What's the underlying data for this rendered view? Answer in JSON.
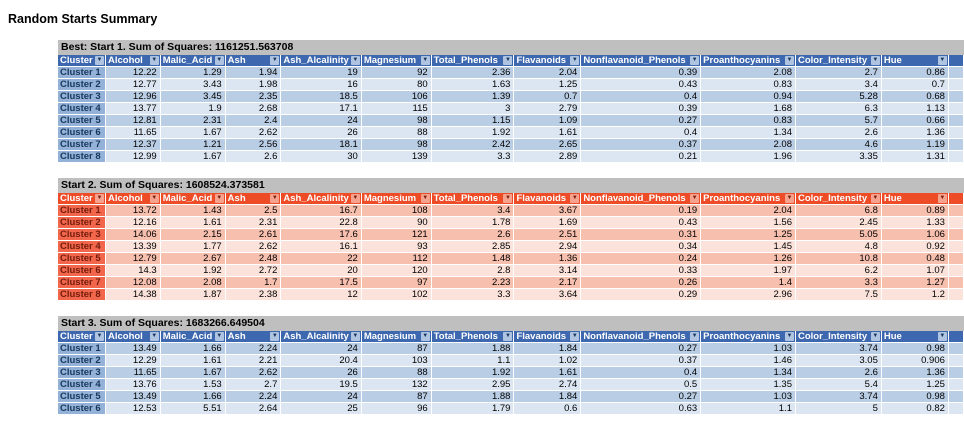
{
  "page_title": "Random Starts Summary",
  "icons": {
    "filter": "▼"
  },
  "colors": {
    "caption_bg": "#BFBFBF",
    "blue_header": "#3D68B0",
    "blue_first_col": "#94B2D8",
    "blue_first_col_text": "#17375D",
    "blue_band_dark": "#B9CDE4",
    "blue_band_light": "#DCE6F2",
    "red_header": "#EE4C27",
    "red_first_col": "#F2674B",
    "red_first_col_text": "#731C0D",
    "red_band_dark": "#F6BFAE",
    "red_band_light": "#FBE3DB"
  },
  "columns": [
    "Cluster",
    "Alcohol",
    "Malic_Acid",
    "Ash",
    "Ash_Alcalinity",
    "Magnesium",
    "Total_Phenols",
    "Flavanoids",
    "Nonflavanoid_Phenols",
    "Proanthocyanins",
    "Color_Intensity",
    "Hue"
  ],
  "tables": [
    {
      "caption": "Best: Start 1. Sum of Squares: 1161251.563708",
      "theme": "blue",
      "rows": [
        [
          "Cluster 1",
          "12.22",
          "1.29",
          "1.94",
          "19",
          "92",
          "2.36",
          "2.04",
          "0.39",
          "2.08",
          "2.7",
          "0.86"
        ],
        [
          "Cluster 2",
          "12.77",
          "3.43",
          "1.98",
          "16",
          "80",
          "1.63",
          "1.25",
          "0.43",
          "0.83",
          "3.4",
          "0.7"
        ],
        [
          "Cluster 3",
          "12.96",
          "3.45",
          "2.35",
          "18.5",
          "106",
          "1.39",
          "0.7",
          "0.4",
          "0.94",
          "5.28",
          "0.68"
        ],
        [
          "Cluster 4",
          "13.77",
          "1.9",
          "2.68",
          "17.1",
          "115",
          "3",
          "2.79",
          "0.39",
          "1.68",
          "6.3",
          "1.13"
        ],
        [
          "Cluster 5",
          "12.81",
          "2.31",
          "2.4",
          "24",
          "98",
          "1.15",
          "1.09",
          "0.27",
          "0.83",
          "5.7",
          "0.66"
        ],
        [
          "Cluster 6",
          "11.65",
          "1.67",
          "2.62",
          "26",
          "88",
          "1.92",
          "1.61",
          "0.4",
          "1.34",
          "2.6",
          "1.36"
        ],
        [
          "Cluster 7",
          "12.37",
          "1.21",
          "2.56",
          "18.1",
          "98",
          "2.42",
          "2.65",
          "0.37",
          "2.08",
          "4.6",
          "1.19"
        ],
        [
          "Cluster 8",
          "12.99",
          "1.67",
          "2.6",
          "30",
          "139",
          "3.3",
          "2.89",
          "0.21",
          "1.96",
          "3.35",
          "1.31"
        ]
      ]
    },
    {
      "caption": "Start 2. Sum of Squares: 1608524.373581",
      "theme": "red",
      "rows": [
        [
          "Cluster 1",
          "13.72",
          "1.43",
          "2.5",
          "16.7",
          "108",
          "3.4",
          "3.67",
          "0.19",
          "2.04",
          "6.8",
          "0.89"
        ],
        [
          "Cluster 2",
          "12.16",
          "1.61",
          "2.31",
          "22.8",
          "90",
          "1.78",
          "1.69",
          "0.43",
          "1.56",
          "2.45",
          "1.33"
        ],
        [
          "Cluster 3",
          "14.06",
          "2.15",
          "2.61",
          "17.6",
          "121",
          "2.6",
          "2.51",
          "0.31",
          "1.25",
          "5.05",
          "1.06"
        ],
        [
          "Cluster 4",
          "13.39",
          "1.77",
          "2.62",
          "16.1",
          "93",
          "2.85",
          "2.94",
          "0.34",
          "1.45",
          "4.8",
          "0.92"
        ],
        [
          "Cluster 5",
          "12.79",
          "2.67",
          "2.48",
          "22",
          "112",
          "1.48",
          "1.36",
          "0.24",
          "1.26",
          "10.8",
          "0.48"
        ],
        [
          "Cluster 6",
          "14.3",
          "1.92",
          "2.72",
          "20",
          "120",
          "2.8",
          "3.14",
          "0.33",
          "1.97",
          "6.2",
          "1.07"
        ],
        [
          "Cluster 7",
          "12.08",
          "2.08",
          "1.7",
          "17.5",
          "97",
          "2.23",
          "2.17",
          "0.26",
          "1.4",
          "3.3",
          "1.27"
        ],
        [
          "Cluster 8",
          "14.38",
          "1.87",
          "2.38",
          "12",
          "102",
          "3.3",
          "3.64",
          "0.29",
          "2.96",
          "7.5",
          "1.2"
        ]
      ]
    },
    {
      "caption": "Start 3. Sum of Squares: 1683266.649504",
      "theme": "blue",
      "rows": [
        [
          "Cluster 1",
          "13.49",
          "1.66",
          "2.24",
          "24",
          "87",
          "1.88",
          "1.84",
          "0.27",
          "1.03",
          "3.74",
          "0.98"
        ],
        [
          "Cluster 2",
          "12.29",
          "1.61",
          "2.21",
          "20.4",
          "103",
          "1.1",
          "1.02",
          "0.37",
          "1.46",
          "3.05",
          "0.906"
        ],
        [
          "Cluster 3",
          "11.65",
          "1.67",
          "2.62",
          "26",
          "88",
          "1.92",
          "1.61",
          "0.4",
          "1.34",
          "2.6",
          "1.36"
        ],
        [
          "Cluster 4",
          "13.76",
          "1.53",
          "2.7",
          "19.5",
          "132",
          "2.95",
          "2.74",
          "0.5",
          "1.35",
          "5.4",
          "1.25"
        ],
        [
          "Cluster 5",
          "13.49",
          "1.66",
          "2.24",
          "24",
          "87",
          "1.88",
          "1.84",
          "0.27",
          "1.03",
          "3.74",
          "0.98"
        ],
        [
          "Cluster 6",
          "12.53",
          "5.51",
          "2.64",
          "25",
          "96",
          "1.79",
          "0.6",
          "0.63",
          "1.1",
          "5",
          "0.82"
        ]
      ]
    }
  ]
}
